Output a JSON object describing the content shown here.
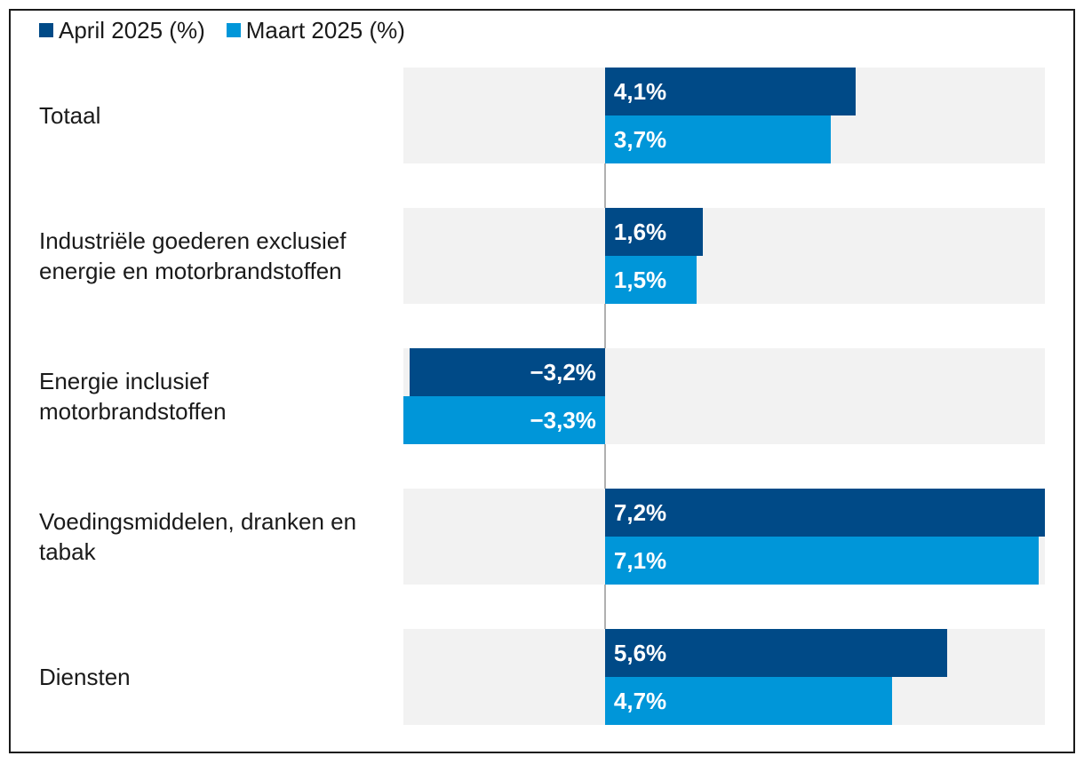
{
  "chart_data": {
    "type": "bar",
    "orientation": "horizontal",
    "title": "",
    "xlabel": "",
    "ylabel": "",
    "xlim": [
      -3.3,
      7.2
    ],
    "categories": [
      "Totaal",
      "Industriële goederen exclusief energie en motorbrandstoffen",
      "Energie inclusief motorbrandstoffen",
      "Voedingsmiddelen, dranken en tabak",
      "Diensten"
    ],
    "series": [
      {
        "name": "April 2025 (%)",
        "color": "#004a87",
        "values": [
          4.1,
          1.6,
          -3.2,
          7.2,
          5.6
        ],
        "labels": [
          "4,1%",
          "1,6%",
          "−3,2%",
          "7,2%",
          "5,6%"
        ]
      },
      {
        "name": "Maart 2025 (%)",
        "color": "#0096d9",
        "values": [
          3.7,
          1.5,
          -3.3,
          7.1,
          4.7
        ],
        "labels": [
          "3,7%",
          "1,5%",
          "−3,3%",
          "7,1%",
          "4,7%"
        ]
      }
    ],
    "legend_position": "top-left",
    "grid": false
  }
}
